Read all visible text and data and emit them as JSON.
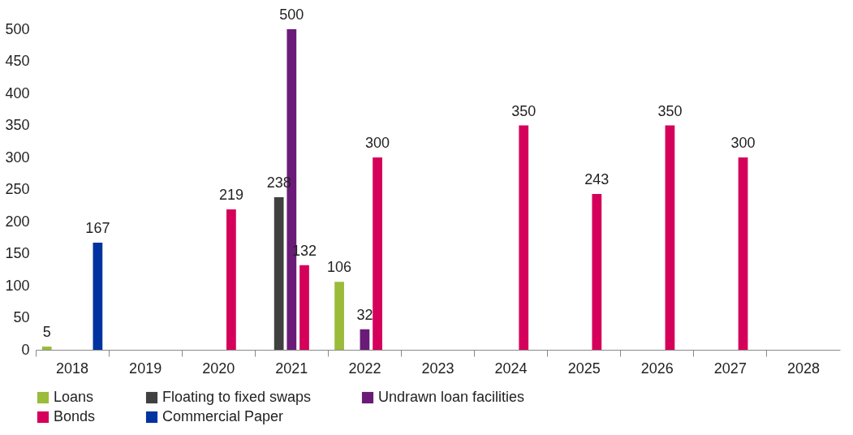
{
  "chart_data": {
    "type": "bar",
    "categories": [
      "2018",
      "2019",
      "2020",
      "2021",
      "2022",
      "2023",
      "2024",
      "2025",
      "2026",
      "2027",
      "2028"
    ],
    "series": [
      {
        "name": "Loans",
        "color": "#9bbb3b",
        "values": [
          5,
          null,
          null,
          null,
          106,
          null,
          null,
          null,
          null,
          null,
          null
        ]
      },
      {
        "name": "Floating to fixed swaps",
        "color": "#404040",
        "values": [
          null,
          null,
          null,
          238,
          null,
          null,
          null,
          null,
          null,
          null,
          null
        ]
      },
      {
        "name": "Undrawn loan facilities",
        "color": "#6a1b78",
        "values": [
          null,
          null,
          null,
          500,
          32,
          null,
          null,
          null,
          null,
          null,
          null
        ]
      },
      {
        "name": "Bonds",
        "color": "#d5005a",
        "values": [
          null,
          null,
          219,
          132,
          300,
          null,
          350,
          243,
          350,
          300,
          null
        ]
      },
      {
        "name": "Commercial Paper",
        "color": "#0033a0",
        "values": [
          167,
          null,
          null,
          null,
          null,
          null,
          null,
          null,
          null,
          null,
          null
        ]
      }
    ],
    "ylim": [
      0,
      500
    ],
    "yticks": [
      0,
      50,
      100,
      150,
      200,
      250,
      300,
      350,
      400,
      450,
      500
    ],
    "grid": false,
    "legend": "bottom",
    "data_labels": true
  }
}
